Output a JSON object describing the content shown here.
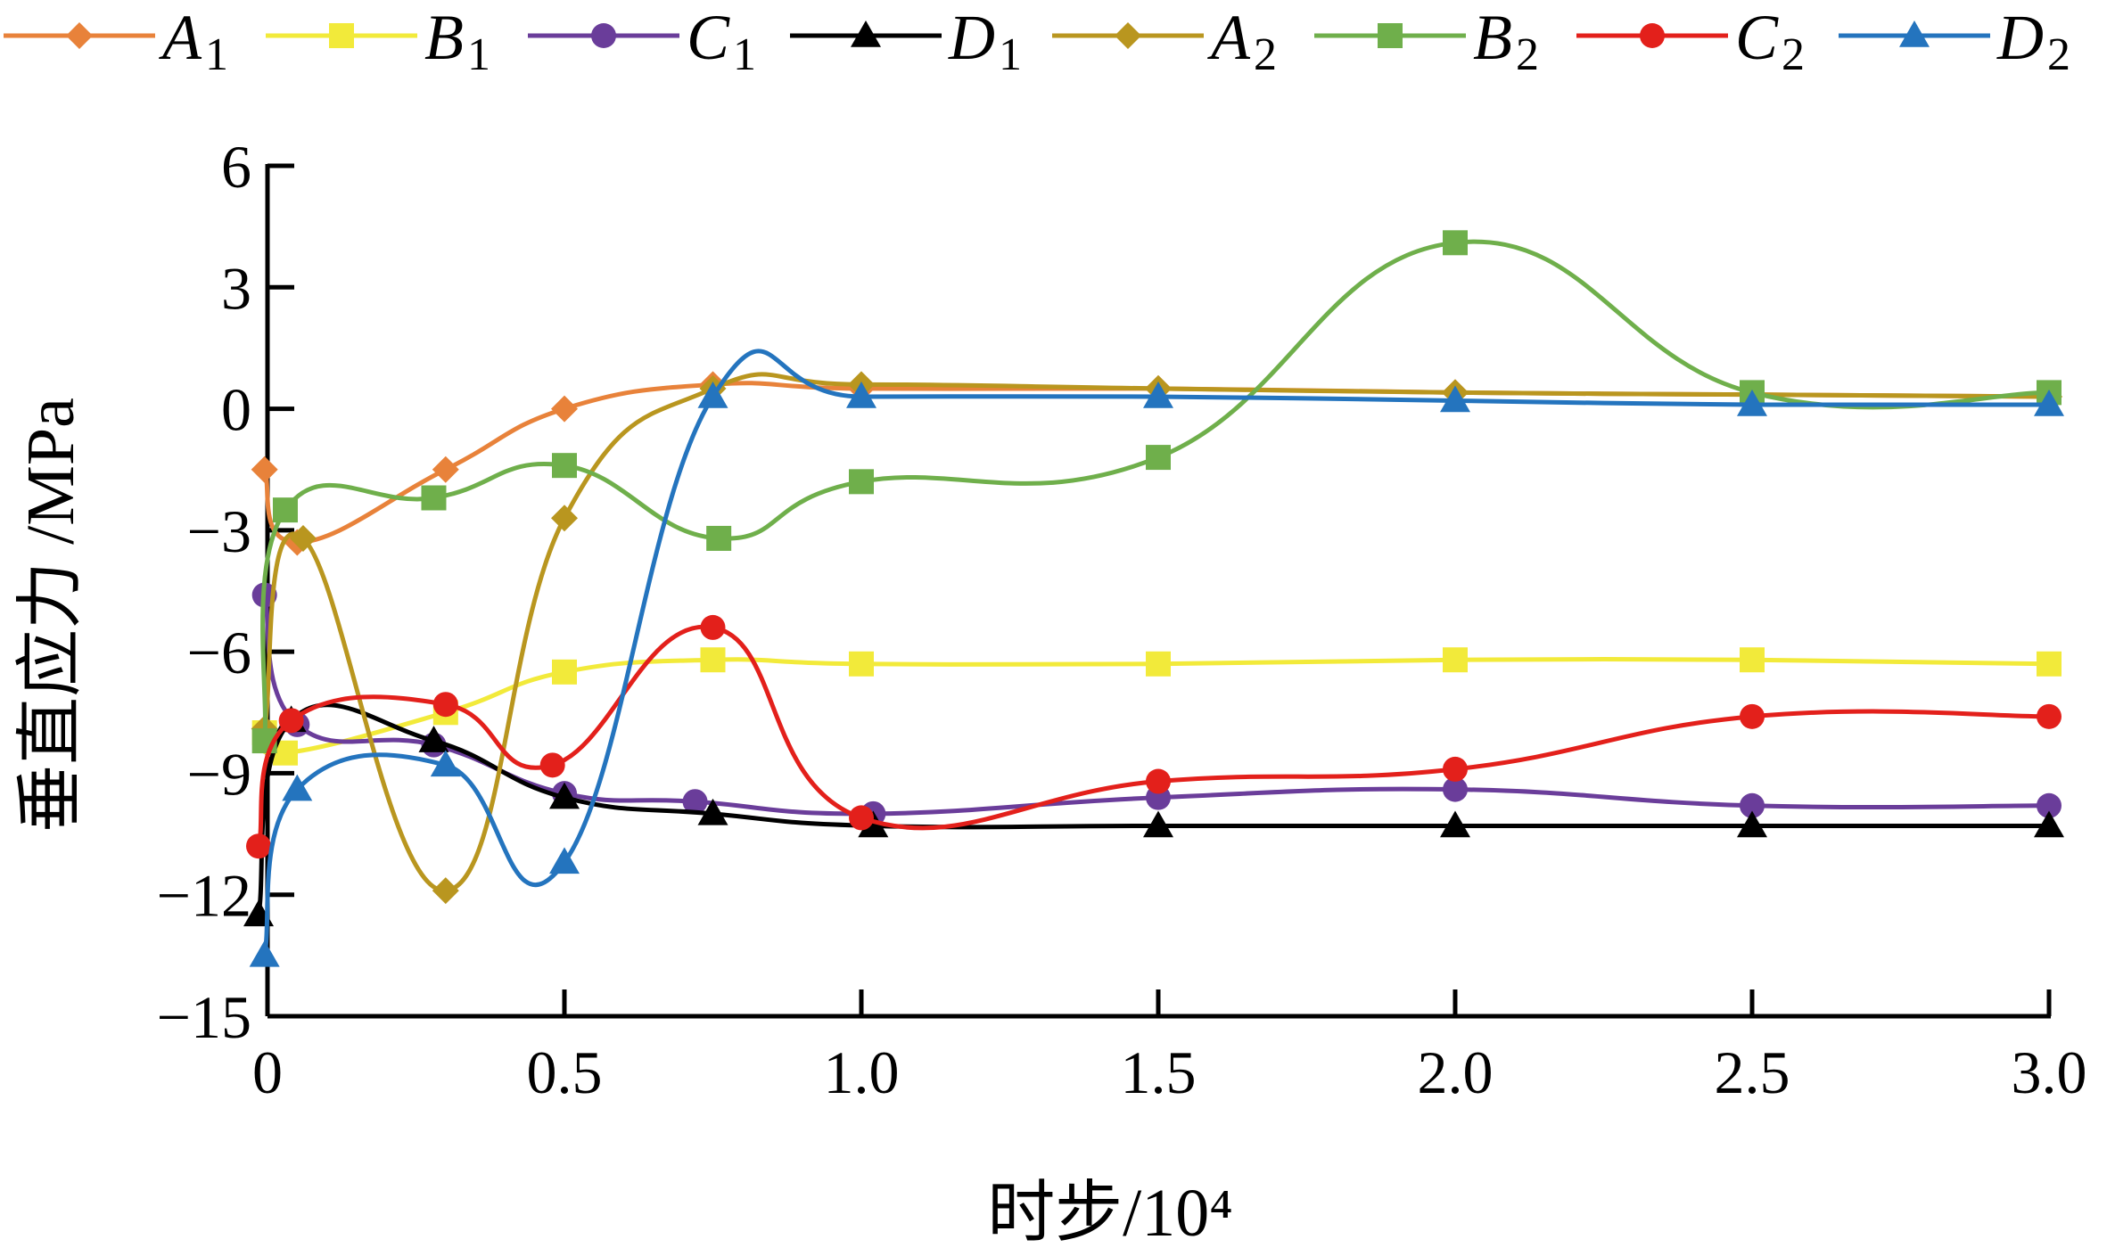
{
  "chart_data": {
    "type": "line",
    "title": "",
    "xlabel": "时步/10⁴",
    "ylabel": "垂直应力 /MPa",
    "xlim": [
      0,
      3.0
    ],
    "ylim": [
      -15,
      6
    ],
    "xticks": [
      0,
      0.5,
      1.0,
      1.5,
      2.0,
      2.5,
      3.0
    ],
    "xtick_labels": [
      "0",
      "0.5",
      "1.0",
      "1.5",
      "2.0",
      "2.5",
      "3.0"
    ],
    "yticks": [
      -15,
      -12,
      -9,
      -6,
      -3,
      0,
      3,
      6
    ],
    "ytick_labels": [
      "−15",
      "−12",
      "−9",
      "−6",
      "−3",
      "0",
      "3",
      "6"
    ],
    "grid": false,
    "legend_position": "top",
    "series": [
      {
        "name": "A",
        "sub": "1",
        "color": "#E8823A",
        "marker": "diamond",
        "points": [
          [
            -0.005,
            -1.5
          ],
          [
            0.05,
            -3.3
          ],
          [
            0.3,
            -1.5
          ],
          [
            0.5,
            0.0
          ],
          [
            0.75,
            0.6
          ],
          [
            1.0,
            0.5
          ],
          [
            1.5,
            0.5
          ],
          [
            2.0,
            0.4
          ],
          [
            2.5,
            0.35
          ],
          [
            3.0,
            0.3
          ]
        ]
      },
      {
        "name": "B",
        "sub": "1",
        "color": "#F2EA3A",
        "marker": "square",
        "points": [
          [
            -0.005,
            -8.0
          ],
          [
            0.03,
            -8.5
          ],
          [
            0.3,
            -7.5
          ],
          [
            0.5,
            -6.5
          ],
          [
            0.75,
            -6.2
          ],
          [
            1.0,
            -6.3
          ],
          [
            1.5,
            -6.3
          ],
          [
            2.0,
            -6.2
          ],
          [
            2.5,
            -6.2
          ],
          [
            3.0,
            -6.3
          ]
        ]
      },
      {
        "name": "C",
        "sub": "1",
        "color": "#6A3D9A",
        "marker": "circle",
        "points": [
          [
            -0.005,
            -4.6
          ],
          [
            0.05,
            -7.8
          ],
          [
            0.28,
            -8.3
          ],
          [
            0.5,
            -9.5
          ],
          [
            0.72,
            -9.7
          ],
          [
            1.02,
            -10.0
          ],
          [
            1.5,
            -9.6
          ],
          [
            2.0,
            -9.4
          ],
          [
            2.5,
            -9.8
          ],
          [
            3.0,
            -9.8
          ]
        ]
      },
      {
        "name": "D",
        "sub": "1",
        "color": "#000000",
        "marker": "triangle",
        "points": [
          [
            -0.015,
            -12.5
          ],
          [
            0.04,
            -7.7
          ],
          [
            0.28,
            -8.2
          ],
          [
            0.5,
            -9.6
          ],
          [
            0.75,
            -10.0
          ],
          [
            1.02,
            -10.3
          ],
          [
            1.5,
            -10.3
          ],
          [
            2.0,
            -10.3
          ],
          [
            2.5,
            -10.3
          ],
          [
            3.0,
            -10.3
          ]
        ]
      },
      {
        "name": "A",
        "sub": "2",
        "color": "#B9961F",
        "marker": "diamond",
        "points": [
          [
            -0.005,
            -7.9
          ],
          [
            0.06,
            -3.2
          ],
          [
            0.3,
            -11.9
          ],
          [
            0.5,
            -2.7
          ],
          [
            0.75,
            0.5
          ],
          [
            1.0,
            0.6
          ],
          [
            1.5,
            0.5
          ],
          [
            2.0,
            0.4
          ],
          [
            2.5,
            0.35
          ],
          [
            3.0,
            0.3
          ]
        ]
      },
      {
        "name": "B",
        "sub": "2",
        "color": "#6FAF4B",
        "marker": "square",
        "points": [
          [
            -0.005,
            -8.2
          ],
          [
            0.03,
            -2.5
          ],
          [
            0.28,
            -2.2
          ],
          [
            0.5,
            -1.4
          ],
          [
            0.76,
            -3.2
          ],
          [
            1.0,
            -1.8
          ],
          [
            1.5,
            -1.2
          ],
          [
            2.0,
            4.1
          ],
          [
            2.5,
            0.4
          ],
          [
            3.0,
            0.4
          ]
        ]
      },
      {
        "name": "C",
        "sub": "2",
        "color": "#E3201B",
        "marker": "circle",
        "points": [
          [
            -0.015,
            -10.8
          ],
          [
            0.04,
            -7.7
          ],
          [
            0.3,
            -7.3
          ],
          [
            0.48,
            -8.8
          ],
          [
            0.75,
            -5.4
          ],
          [
            1.0,
            -10.1
          ],
          [
            1.5,
            -9.2
          ],
          [
            2.0,
            -8.9
          ],
          [
            2.5,
            -7.6
          ],
          [
            3.0,
            -7.6
          ]
        ]
      },
      {
        "name": "D",
        "sub": "2",
        "color": "#2474BE",
        "marker": "triangle",
        "points": [
          [
            -0.005,
            -13.5
          ],
          [
            0.05,
            -9.4
          ],
          [
            0.3,
            -8.8
          ],
          [
            0.5,
            -11.2
          ],
          [
            0.75,
            0.3
          ],
          [
            1.0,
            0.3
          ],
          [
            1.5,
            0.3
          ],
          [
            2.0,
            0.2
          ],
          [
            2.5,
            0.1
          ],
          [
            3.0,
            0.1
          ]
        ]
      }
    ]
  }
}
